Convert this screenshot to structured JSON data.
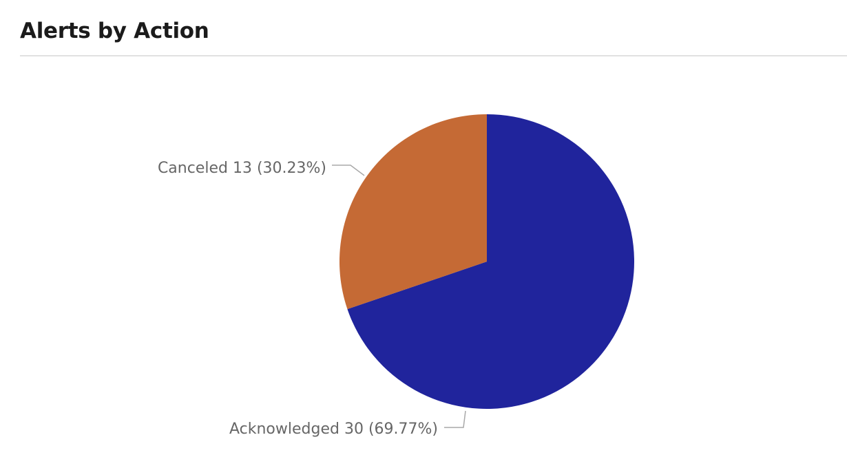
{
  "panel": {
    "title": "Alerts by Action"
  },
  "chart_data": {
    "type": "pie",
    "title": "Alerts by Action",
    "slices": [
      {
        "label": "Acknowledged",
        "value": 30,
        "percent": 69.77,
        "color": "#20249c",
        "display": "Acknowledged 30 (69.77%)"
      },
      {
        "label": "Canceled",
        "value": 13,
        "percent": 30.23,
        "color": "#c56a35",
        "display": "Canceled 13 (30.23%)"
      }
    ],
    "start_angle_deg": 0,
    "direction": "clockwise",
    "legend": "none",
    "data_labels": "outside"
  }
}
